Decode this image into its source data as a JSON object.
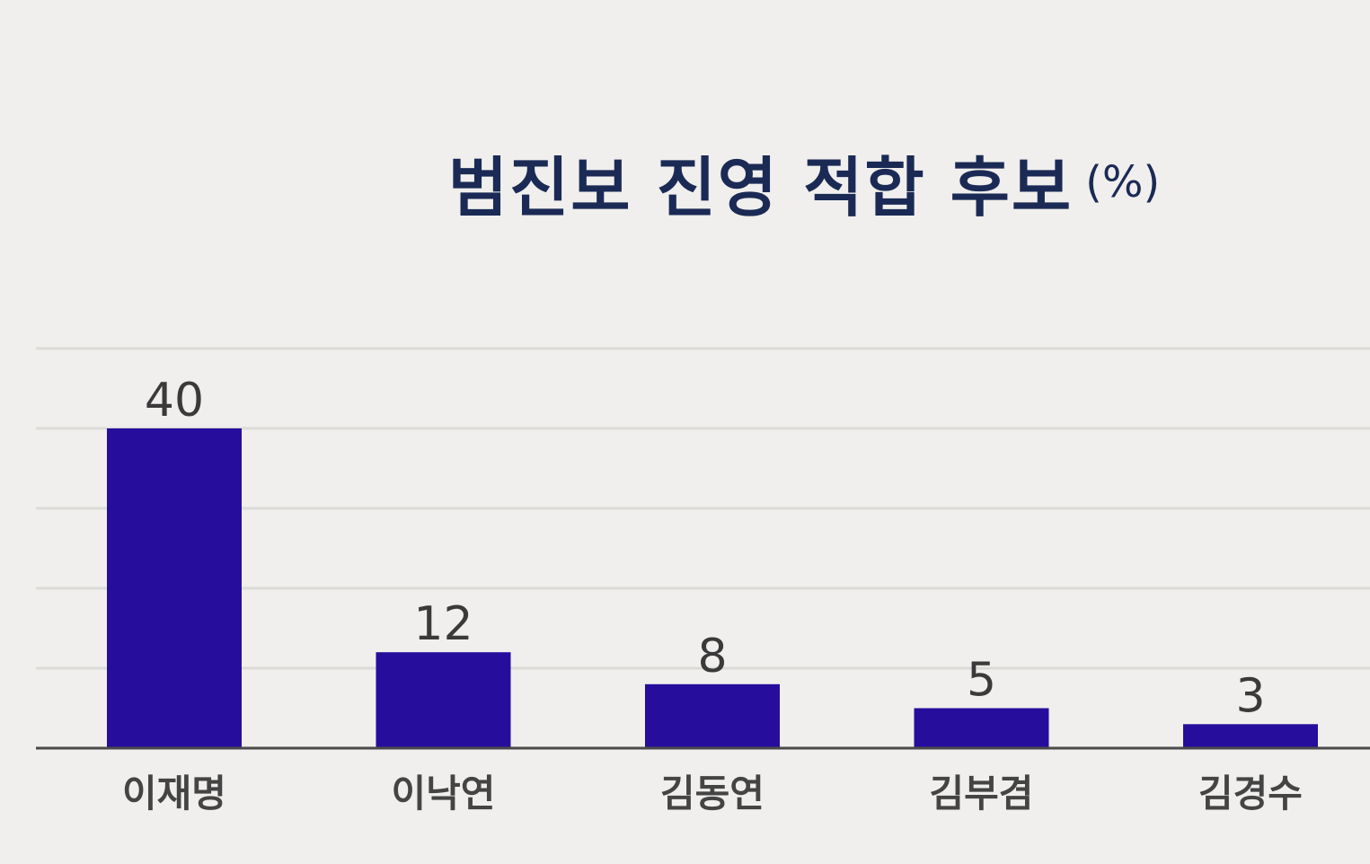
{
  "chart_data": {
    "type": "bar",
    "title": "범진보 진영 적합 후보",
    "unit": "(%)",
    "categories": [
      "이재명",
      "이낙연",
      "김동연",
      "김부겸",
      "김경수"
    ],
    "values": [
      40,
      12,
      8,
      5,
      3
    ],
    "data_labels": [
      "40",
      "12",
      "8",
      "5",
      "3"
    ],
    "ylim": [
      0,
      50
    ],
    "grid": true,
    "legend": "none",
    "colors": {
      "bar": "#260d9c",
      "grid": "#dcdbd8",
      "axis": "#4a4a4a",
      "title": "#1b2a55"
    }
  }
}
